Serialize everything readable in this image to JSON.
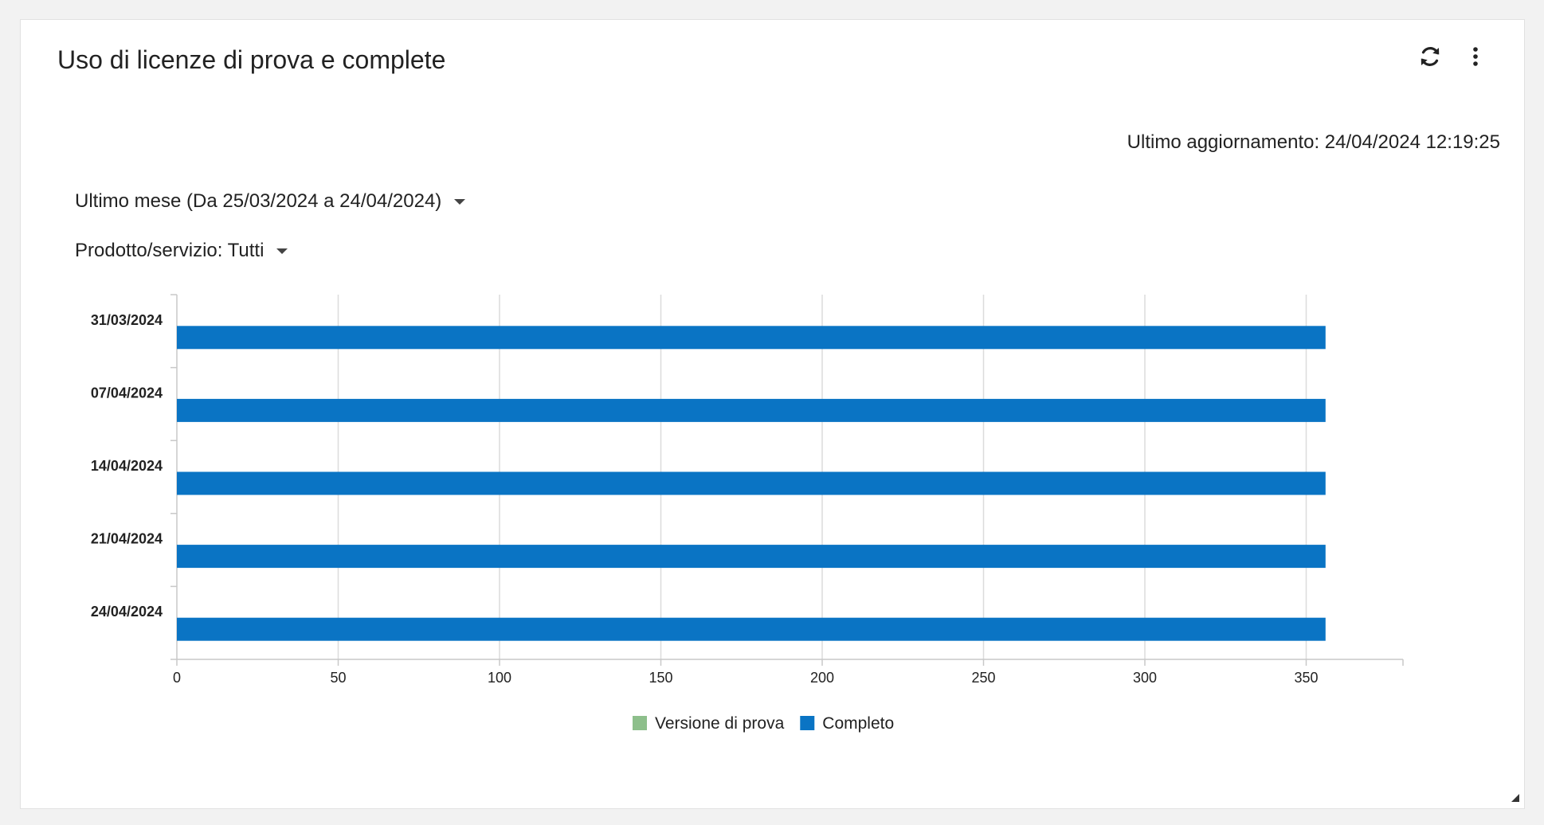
{
  "widget": {
    "title": "Uso di licenze di prova e complete",
    "last_updated": "Ultimo aggiornamento: 24/04/2024 12:19:25",
    "period_filter": "Ultimo mese (Da 25/03/2024 a 24/04/2024)",
    "product_filter": "Prodotto/servizio: Tutti"
  },
  "icons": {
    "refresh": "refresh-icon",
    "more": "more-vertical-icon"
  },
  "chart_data": {
    "type": "bar",
    "orientation": "horizontal",
    "categories": [
      "31/03/2024",
      "07/04/2024",
      "14/04/2024",
      "21/04/2024",
      "24/04/2024"
    ],
    "series": [
      {
        "name": "Versione di prova",
        "color": "#8dbf8b",
        "values": [
          0,
          0,
          0,
          0,
          0
        ]
      },
      {
        "name": "Completo",
        "color": "#0a74c4",
        "values": [
          356,
          356,
          356,
          356,
          356
        ]
      }
    ],
    "xlim": [
      0,
      380
    ],
    "xticks": [
      0,
      50,
      100,
      150,
      200,
      250,
      300,
      350
    ],
    "grid": true,
    "legend": "bottom"
  }
}
